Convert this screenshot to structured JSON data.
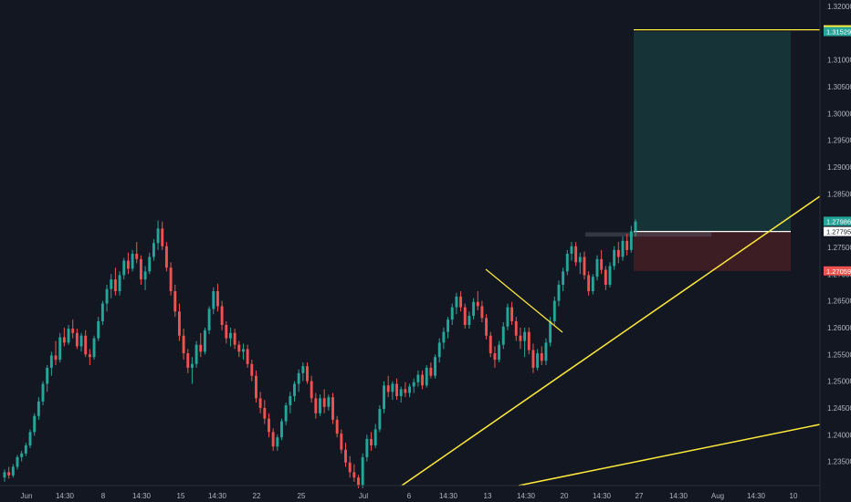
{
  "chart_data": {
    "type": "candlestick",
    "title": "",
    "instrument": "",
    "colors": {
      "background": "#131722",
      "up": "#26a69a",
      "down": "#ef5350",
      "trendline": "#ffeb3b",
      "target_zone": "#163338",
      "stop_zone": "#3d1d24",
      "axis_text": "#b2b5be",
      "axis_line": "#2a2e39"
    },
    "x_axis": {
      "ticks": [
        "Jun",
        "14:30",
        "8",
        "14:30",
        "15",
        "14:30",
        "22",
        "25",
        "Jul",
        "6",
        "14:30",
        "13",
        "14:30",
        "20",
        "14:30",
        "27",
        "14:30",
        "Aug",
        "14:30",
        "10"
      ]
    },
    "y_axis": {
      "ylim": [
        1.2305,
        1.3205
      ],
      "ticks": [
        "1.32000",
        "1.31500",
        "1.31000",
        "1.30500",
        "1.30000",
        "1.29500",
        "1.29000",
        "1.28500",
        "1.28000",
        "1.27500",
        "1.27000",
        "1.26500",
        "1.26000",
        "1.25500",
        "1.25000",
        "1.24500",
        "1.24000",
        "1.23500"
      ],
      "tick_values": [
        1.32,
        1.315,
        1.31,
        1.305,
        1.3,
        1.295,
        1.29,
        1.285,
        1.28,
        1.275,
        1.27,
        1.265,
        1.26,
        1.255,
        1.25,
        1.245,
        1.24,
        1.235
      ]
    },
    "price_labels": [
      {
        "text": "1.31562",
        "value": 1.31562,
        "bg": "#ffeb3b",
        "fg": "#131722"
      },
      {
        "text": "1.31529",
        "value": 1.31529,
        "bg": "#26a69a",
        "fg": "#ffffff"
      },
      {
        "text": "1.27986",
        "value": 1.27986,
        "bg": "#26a69a",
        "fg": "#ffffff"
      },
      {
        "text": "1.27795",
        "value": 1.27795,
        "bg": "#ffffff",
        "fg": "#131722"
      },
      {
        "text": "1.27059",
        "value": 1.27059,
        "bg": "#ef5350",
        "fg": "#ffffff"
      }
    ],
    "position": {
      "entry": 1.27795,
      "target": 1.31529,
      "stop": 1.27059
    },
    "horizontal_line": 1.31562,
    "candles": [
      [
        1.232,
        1.2335,
        1.2312,
        1.233
      ],
      [
        1.233,
        1.234,
        1.2318,
        1.2324
      ],
      [
        1.2324,
        1.2345,
        1.232,
        1.234
      ],
      [
        1.234,
        1.2362,
        1.2335,
        1.2358
      ],
      [
        1.2358,
        1.237,
        1.235,
        1.2365
      ],
      [
        1.2365,
        1.2385,
        1.236,
        1.238
      ],
      [
        1.238,
        1.241,
        1.2375,
        1.2405
      ],
      [
        1.2405,
        1.244,
        1.2398,
        1.2435
      ],
      [
        1.2435,
        1.247,
        1.2428,
        1.2462
      ],
      [
        1.2462,
        1.25,
        1.2455,
        1.2495
      ],
      [
        1.2495,
        1.253,
        1.248,
        1.2525
      ],
      [
        1.2525,
        1.2555,
        1.251,
        1.2548
      ],
      [
        1.2548,
        1.2575,
        1.253,
        1.254
      ],
      [
        1.254,
        1.259,
        1.2535,
        1.2582
      ],
      [
        1.2582,
        1.26,
        1.2565,
        1.2572
      ],
      [
        1.2572,
        1.2605,
        1.2568,
        1.2598
      ],
      [
        1.2598,
        1.2615,
        1.258,
        1.259
      ],
      [
        1.259,
        1.2598,
        1.256,
        1.2565
      ],
      [
        1.2565,
        1.259,
        1.2555,
        1.2585
      ],
      [
        1.2585,
        1.2595,
        1.2545,
        1.255
      ],
      [
        1.255,
        1.256,
        1.253,
        1.2545
      ],
      [
        1.2545,
        1.2585,
        1.254,
        1.258
      ],
      [
        1.258,
        1.262,
        1.2575,
        1.2612
      ],
      [
        1.2612,
        1.265,
        1.2605,
        1.2645
      ],
      [
        1.2645,
        1.268,
        1.263,
        1.2672
      ],
      [
        1.2672,
        1.27,
        1.2655,
        1.269
      ],
      [
        1.269,
        1.2712,
        1.266,
        1.2668
      ],
      [
        1.2668,
        1.2705,
        1.266,
        1.2698
      ],
      [
        1.2698,
        1.273,
        1.269,
        1.2725
      ],
      [
        1.2725,
        1.274,
        1.27,
        1.271
      ],
      [
        1.271,
        1.2745,
        1.2705,
        1.2738
      ],
      [
        1.2738,
        1.276,
        1.272,
        1.2728
      ],
      [
        1.2728,
        1.2735,
        1.268,
        1.269
      ],
      [
        1.269,
        1.2715,
        1.267,
        1.2705
      ],
      [
        1.2705,
        1.274,
        1.27,
        1.2732
      ],
      [
        1.2732,
        1.2765,
        1.2725,
        1.2758
      ],
      [
        1.2758,
        1.28,
        1.2745,
        1.2785
      ],
      [
        1.2785,
        1.2798,
        1.2745,
        1.2752
      ],
      [
        1.2752,
        1.276,
        1.2705,
        1.2712
      ],
      [
        1.2712,
        1.2722,
        1.266,
        1.2668
      ],
      [
        1.2668,
        1.268,
        1.262,
        1.263
      ],
      [
        1.263,
        1.2645,
        1.2575,
        1.2585
      ],
      [
        1.2585,
        1.2598,
        1.254,
        1.2552
      ],
      [
        1.2552,
        1.256,
        1.2515,
        1.2525
      ],
      [
        1.2525,
        1.2545,
        1.2495,
        1.2532
      ],
      [
        1.2532,
        1.2575,
        1.2525,
        1.2568
      ],
      [
        1.2568,
        1.259,
        1.2545,
        1.2555
      ],
      [
        1.2555,
        1.26,
        1.255,
        1.2595
      ],
      [
        1.2595,
        1.264,
        1.2588,
        1.2635
      ],
      [
        1.2635,
        1.2675,
        1.2625,
        1.2668
      ],
      [
        1.2668,
        1.2682,
        1.263,
        1.264
      ],
      [
        1.264,
        1.265,
        1.2595,
        1.2605
      ],
      [
        1.2605,
        1.2612,
        1.257,
        1.258
      ],
      [
        1.258,
        1.26,
        1.2565,
        1.259
      ],
      [
        1.259,
        1.2598,
        1.256,
        1.2568
      ],
      [
        1.2568,
        1.2575,
        1.2545,
        1.2555
      ],
      [
        1.2555,
        1.257,
        1.254,
        1.256
      ],
      [
        1.256,
        1.2568,
        1.2525,
        1.2532
      ],
      [
        1.2532,
        1.254,
        1.25,
        1.251
      ],
      [
        1.251,
        1.252,
        1.246,
        1.2468
      ],
      [
        1.2468,
        1.248,
        1.244,
        1.245
      ],
      [
        1.245,
        1.2465,
        1.242,
        1.243
      ],
      [
        1.243,
        1.244,
        1.2395,
        1.2405
      ],
      [
        1.2405,
        1.2412,
        1.237,
        1.2378
      ],
      [
        1.2378,
        1.24,
        1.237,
        1.2395
      ],
      [
        1.2395,
        1.243,
        1.239,
        1.2425
      ],
      [
        1.2425,
        1.246,
        1.2418,
        1.2455
      ],
      [
        1.2455,
        1.248,
        1.244,
        1.2472
      ],
      [
        1.2472,
        1.25,
        1.2462,
        1.2495
      ],
      [
        1.2495,
        1.2522,
        1.248,
        1.2515
      ],
      [
        1.2515,
        1.2535,
        1.25,
        1.2528
      ],
      [
        1.2528,
        1.2535,
        1.2495,
        1.25
      ],
      [
        1.25,
        1.251,
        1.246,
        1.2468
      ],
      [
        1.2468,
        1.2478,
        1.243,
        1.244
      ],
      [
        1.244,
        1.2475,
        1.2435,
        1.2468
      ],
      [
        1.2468,
        1.2485,
        1.244,
        1.2452
      ],
      [
        1.2452,
        1.2475,
        1.2445,
        1.247
      ],
      [
        1.247,
        1.2478,
        1.242,
        1.2428
      ],
      [
        1.2428,
        1.2435,
        1.2395,
        1.2402
      ],
      [
        1.2402,
        1.241,
        1.2365,
        1.2372
      ],
      [
        1.2372,
        1.2385,
        1.234,
        1.2348
      ],
      [
        1.2348,
        1.236,
        1.232,
        1.233
      ],
      [
        1.233,
        1.2345,
        1.2312,
        1.232
      ],
      [
        1.232,
        1.2325,
        1.23,
        1.2305
      ],
      [
        1.2305,
        1.2365,
        1.23,
        1.2358
      ],
      [
        1.2358,
        1.24,
        1.235,
        1.2392
      ],
      [
        1.2392,
        1.2405,
        1.237,
        1.238
      ],
      [
        1.238,
        1.242,
        1.2375,
        1.241
      ],
      [
        1.241,
        1.2455,
        1.2405,
        1.2448
      ],
      [
        1.2448,
        1.25,
        1.244,
        1.2492
      ],
      [
        1.2492,
        1.251,
        1.247,
        1.248
      ],
      [
        1.248,
        1.25,
        1.2465,
        1.2495
      ],
      [
        1.2495,
        1.2505,
        1.2465,
        1.2472
      ],
      [
        1.2472,
        1.249,
        1.246,
        1.2485
      ],
      [
        1.2485,
        1.2498,
        1.247,
        1.2478
      ],
      [
        1.2478,
        1.2495,
        1.247,
        1.249
      ],
      [
        1.249,
        1.2505,
        1.2478,
        1.2498
      ],
      [
        1.2498,
        1.252,
        1.249,
        1.2512
      ],
      [
        1.2512,
        1.252,
        1.2485,
        1.2492
      ],
      [
        1.2492,
        1.253,
        1.2488,
        1.2525
      ],
      [
        1.2525,
        1.2535,
        1.2505,
        1.251
      ],
      [
        1.251,
        1.255,
        1.2505,
        1.2545
      ],
      [
        1.2545,
        1.258,
        1.2535,
        1.2572
      ],
      [
        1.2572,
        1.26,
        1.256,
        1.2592
      ],
      [
        1.2592,
        1.262,
        1.258,
        1.2615
      ],
      [
        1.2615,
        1.2645,
        1.2605,
        1.2638
      ],
      [
        1.2638,
        1.2665,
        1.2625,
        1.2658
      ],
      [
        1.2658,
        1.2668,
        1.263,
        1.2638
      ],
      [
        1.2638,
        1.2645,
        1.2598,
        1.2605
      ],
      [
        1.2605,
        1.263,
        1.2598,
        1.2622
      ],
      [
        1.2622,
        1.2655,
        1.2615,
        1.2648
      ],
      [
        1.2648,
        1.2668,
        1.2632,
        1.264
      ],
      [
        1.264,
        1.265,
        1.261,
        1.2618
      ],
      [
        1.2618,
        1.2625,
        1.2578,
        1.2585
      ],
      [
        1.2585,
        1.2592,
        1.2545,
        1.2552
      ],
      [
        1.2552,
        1.2565,
        1.2525,
        1.254
      ],
      [
        1.254,
        1.2575,
        1.2535,
        1.2568
      ],
      [
        1.2568,
        1.261,
        1.256,
        1.2602
      ],
      [
        1.2602,
        1.2645,
        1.2595,
        1.2638
      ],
      [
        1.2638,
        1.2648,
        1.2605,
        1.2612
      ],
      [
        1.2612,
        1.262,
        1.2575,
        1.2585
      ],
      [
        1.2585,
        1.26,
        1.256,
        1.2575
      ],
      [
        1.2575,
        1.26,
        1.2545,
        1.2592
      ],
      [
        1.2592,
        1.26,
        1.255,
        1.2558
      ],
      [
        1.2558,
        1.257,
        1.2515,
        1.2525
      ],
      [
        1.2525,
        1.256,
        1.252,
        1.2552
      ],
      [
        1.2552,
        1.2565,
        1.253,
        1.2538
      ],
      [
        1.2538,
        1.258,
        1.253,
        1.2572
      ],
      [
        1.2572,
        1.262,
        1.2565,
        1.2612
      ],
      [
        1.2612,
        1.2658,
        1.2605,
        1.265
      ],
      [
        1.265,
        1.2688,
        1.264,
        1.268
      ],
      [
        1.268,
        1.2712,
        1.2668,
        1.2705
      ],
      [
        1.2705,
        1.2745,
        1.2698,
        1.2738
      ],
      [
        1.2738,
        1.276,
        1.2725,
        1.2752
      ],
      [
        1.2752,
        1.276,
        1.2715,
        1.2722
      ],
      [
        1.2722,
        1.274,
        1.27,
        1.2732
      ],
      [
        1.2732,
        1.2742,
        1.269,
        1.2698
      ],
      [
        1.2698,
        1.2705,
        1.266,
        1.2668
      ],
      [
        1.2668,
        1.27,
        1.2662,
        1.2695
      ],
      [
        1.2695,
        1.2735,
        1.2688,
        1.2728
      ],
      [
        1.2728,
        1.2745,
        1.27,
        1.2708
      ],
      [
        1.2708,
        1.2715,
        1.267,
        1.268
      ],
      [
        1.268,
        1.2722,
        1.2675,
        1.2715
      ],
      [
        1.2715,
        1.2752,
        1.2708,
        1.2745
      ],
      [
        1.2745,
        1.276,
        1.272,
        1.2732
      ],
      [
        1.2732,
        1.277,
        1.2725,
        1.2762
      ],
      [
        1.2762,
        1.2775,
        1.2735,
        1.2745
      ],
      [
        1.2745,
        1.279,
        1.274,
        1.278
      ],
      [
        1.278,
        1.2802,
        1.277,
        1.2798
      ]
    ]
  }
}
